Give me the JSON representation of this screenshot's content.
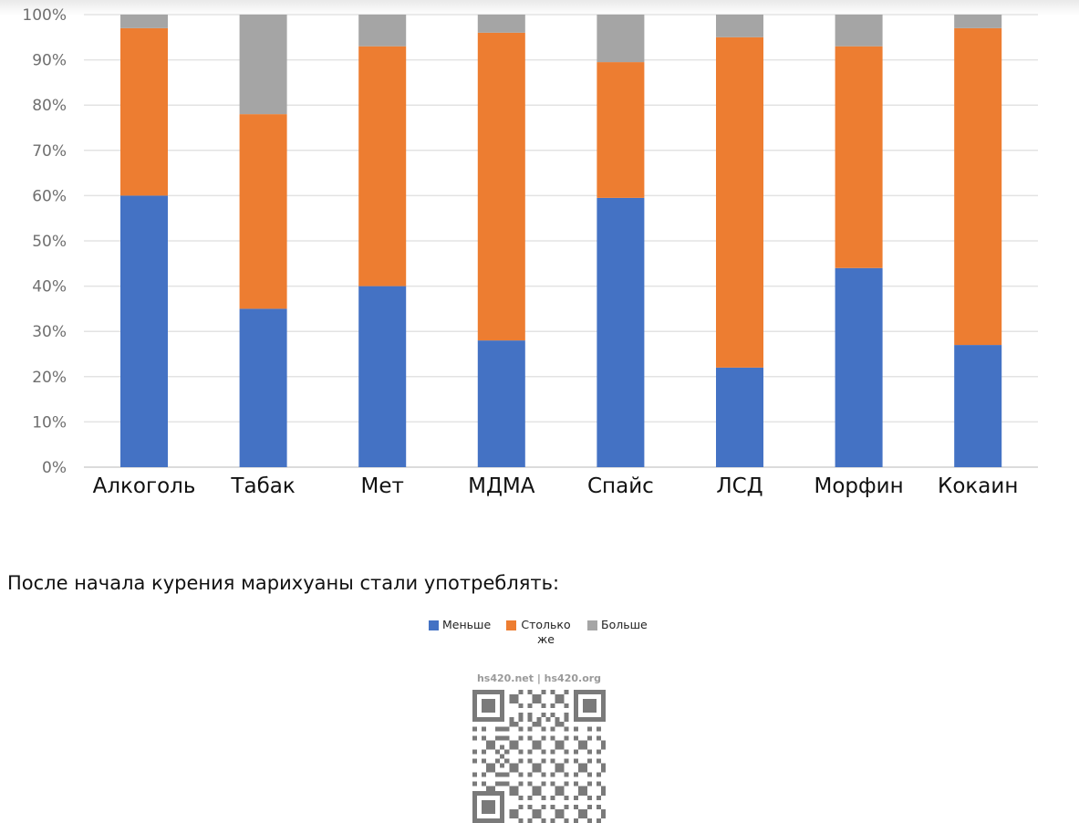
{
  "chart_data": {
    "type": "bar",
    "stacked": true,
    "categories": [
      "Алкоголь",
      "Табак",
      "Мет",
      "МДМА",
      "Спайс",
      "ЛСД",
      "Морфин",
      "Кокаин"
    ],
    "series": [
      {
        "name": "Меньше",
        "color": "#4472c4",
        "values": [
          60,
          35,
          40,
          28,
          59.5,
          22,
          44,
          27
        ]
      },
      {
        "name": "Столько же",
        "color": "#ed7d31",
        "values": [
          37,
          43,
          53,
          68,
          30,
          73,
          49,
          70
        ]
      },
      {
        "name": "Больше",
        "color": "#a5a5a5",
        "values": [
          3,
          22,
          7,
          4,
          10.5,
          5,
          7,
          3
        ]
      }
    ],
    "ylim": [
      0,
      100
    ],
    "yticks": [
      "0%",
      "10%",
      "20%",
      "30%",
      "40%",
      "50%",
      "60%",
      "70%",
      "80%",
      "90%",
      "100%"
    ],
    "grid": true,
    "legend_position": "bottom"
  },
  "caption": "После начала курения марихуаны стали употреблять:",
  "legend": [
    {
      "label": "Меньше",
      "color": "#4472c4"
    },
    {
      "label": "Столько же",
      "color": "#ed7d31"
    },
    {
      "label": "Больше",
      "color": "#a5a5a5"
    }
  ],
  "source": "hs420.net | hs420.org",
  "qr_icon": "qr-code-icon"
}
